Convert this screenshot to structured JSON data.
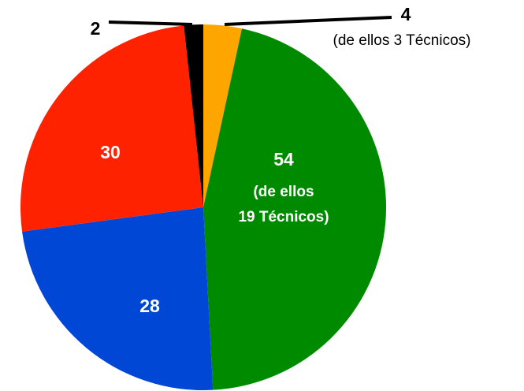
{
  "chart_data": {
    "type": "pie",
    "categories": [
      null,
      null,
      null,
      null,
      null
    ],
    "values": [
      4,
      54,
      28,
      30,
      2
    ],
    "colors": [
      "#ffa500",
      "#008a00",
      "#0047d6",
      "#ff2200",
      "#000000"
    ],
    "annotations": [
      "(de ellos 3 Técnicos)",
      "(de ellos",
      "19 Técnicos)"
    ]
  }
}
